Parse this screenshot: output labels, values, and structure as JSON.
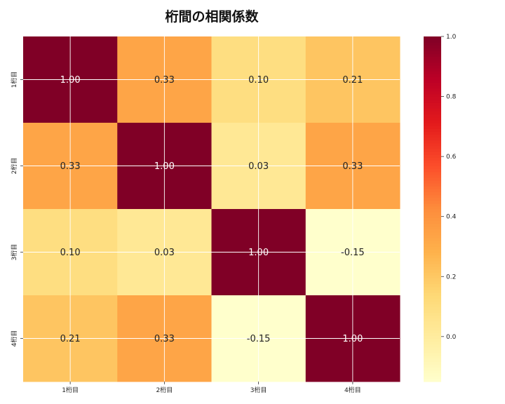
{
  "chart_data": {
    "type": "heatmap",
    "title": "桁間の相関係数",
    "xlabel": "",
    "ylabel": "",
    "row_labels": [
      "1桁目",
      "2桁目",
      "3桁目",
      "4桁目"
    ],
    "col_labels": [
      "1桁目",
      "2桁目",
      "3桁目",
      "4桁目"
    ],
    "values": [
      [
        1.0,
        0.33,
        0.1,
        0.21
      ],
      [
        0.33,
        1.0,
        0.03,
        0.33
      ],
      [
        0.1,
        0.03,
        1.0,
        -0.15
      ],
      [
        0.21,
        0.33,
        -0.15,
        1.0
      ]
    ],
    "value_format": "2 decimals",
    "colormap": "YlOrRd",
    "vmin": -0.15,
    "vmax": 1.0,
    "colorbar_ticks": [
      "0.0",
      "0.2",
      "0.4",
      "0.6",
      "0.8",
      "1.0"
    ],
    "grid": true,
    "colorbar_position": "right"
  }
}
